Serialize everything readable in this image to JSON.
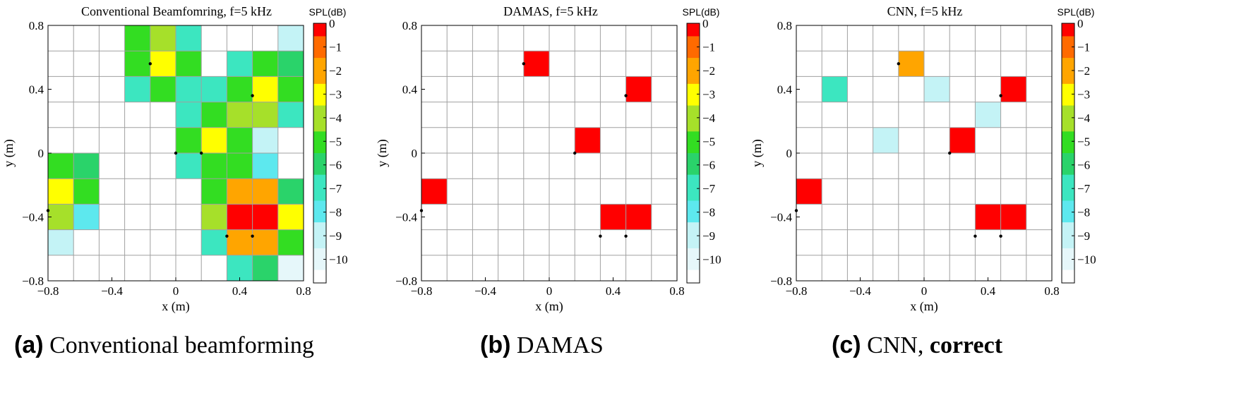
{
  "panels": [
    {
      "title": "Conventional Beamfomring, f=5 kHz",
      "colorbar_label": "SPL(dB)",
      "caption_tag": "(a)",
      "caption_text": " Conventional beamforming",
      "caption_bold": "",
      "chart_data": {
        "type": "heatmap",
        "xlabel": "x (m)",
        "ylabel": "y (m)",
        "xlim": [
          -0.8,
          0.8
        ],
        "ylim": [
          -0.8,
          0.8
        ],
        "grid": true,
        "x_ticks": [
          "−0.8",
          "−0.4",
          "0",
          "0.4",
          "0.8"
        ],
        "y_ticks": [
          "0.8",
          "0.4",
          "0",
          "−0.4",
          "−0.8"
        ],
        "cell_size_m": 0.16,
        "colorbar_ticks": [
          "0",
          "−1",
          "−2",
          "−3",
          "−4",
          "−5",
          "−6",
          "−7",
          "−8",
          "−9",
          "−10"
        ],
        "colorbar_range_db": [
          -11,
          0
        ],
        "cells": [
          {
            "col": 3,
            "row": 0,
            "db": -5.5
          },
          {
            "col": 4,
            "row": 0,
            "db": -4
          },
          {
            "col": 5,
            "row": 0,
            "db": -7
          },
          {
            "col": 9,
            "row": 0,
            "db": -9.5
          },
          {
            "col": 3,
            "row": 1,
            "db": -5
          },
          {
            "col": 4,
            "row": 1,
            "db": -3
          },
          {
            "col": 5,
            "row": 1,
            "db": -5
          },
          {
            "col": 7,
            "row": 1,
            "db": -7
          },
          {
            "col": 8,
            "row": 1,
            "db": -5
          },
          {
            "col": 9,
            "row": 1,
            "db": -6
          },
          {
            "col": 3,
            "row": 2,
            "db": -7
          },
          {
            "col": 4,
            "row": 2,
            "db": -5
          },
          {
            "col": 5,
            "row": 2,
            "db": -7
          },
          {
            "col": 6,
            "row": 2,
            "db": -7.5
          },
          {
            "col": 7,
            "row": 2,
            "db": -5
          },
          {
            "col": 8,
            "row": 2,
            "db": -3
          },
          {
            "col": 9,
            "row": 2,
            "db": -5
          },
          {
            "col": 5,
            "row": 3,
            "db": -7
          },
          {
            "col": 6,
            "row": 3,
            "db": -5
          },
          {
            "col": 7,
            "row": 3,
            "db": -4
          },
          {
            "col": 8,
            "row": 3,
            "db": -4
          },
          {
            "col": 9,
            "row": 3,
            "db": -7.5
          },
          {
            "col": 5,
            "row": 4,
            "db": -5
          },
          {
            "col": 6,
            "row": 4,
            "db": -3
          },
          {
            "col": 7,
            "row": 4,
            "db": -5
          },
          {
            "col": 8,
            "row": 4,
            "db": -9.5
          },
          {
            "col": 0,
            "row": 5,
            "db": -5
          },
          {
            "col": 1,
            "row": 5,
            "db": -6
          },
          {
            "col": 5,
            "row": 5,
            "db": -7.5
          },
          {
            "col": 6,
            "row": 5,
            "db": -5
          },
          {
            "col": 7,
            "row": 5,
            "db": -5
          },
          {
            "col": 8,
            "row": 5,
            "db": -8
          },
          {
            "col": 0,
            "row": 6,
            "db": -3
          },
          {
            "col": 1,
            "row": 6,
            "db": -5
          },
          {
            "col": 6,
            "row": 6,
            "db": -5
          },
          {
            "col": 7,
            "row": 6,
            "db": -2
          },
          {
            "col": 8,
            "row": 6,
            "db": -2
          },
          {
            "col": 9,
            "row": 6,
            "db": -6
          },
          {
            "col": 0,
            "row": 7,
            "db": -4
          },
          {
            "col": 1,
            "row": 7,
            "db": -8
          },
          {
            "col": 6,
            "row": 7,
            "db": -4
          },
          {
            "col": 7,
            "row": 7,
            "db": 0
          },
          {
            "col": 8,
            "row": 7,
            "db": 0
          },
          {
            "col": 9,
            "row": 7,
            "db": -3
          },
          {
            "col": 0,
            "row": 8,
            "db": -9.5
          },
          {
            "col": 6,
            "row": 8,
            "db": -7
          },
          {
            "col": 7,
            "row": 8,
            "db": -2
          },
          {
            "col": 8,
            "row": 8,
            "db": -2
          },
          {
            "col": 9,
            "row": 8,
            "db": -5
          },
          {
            "col": 7,
            "row": 9,
            "db": -7.5
          },
          {
            "col": 8,
            "row": 9,
            "db": -6
          },
          {
            "col": 9,
            "row": 9,
            "db": -10
          }
        ],
        "source_markers": [
          [
            -0.16,
            0.56
          ],
          [
            0.48,
            0.36
          ],
          [
            0.0,
            0.0
          ],
          [
            0.16,
            0.0
          ],
          [
            -0.8,
            -0.36
          ],
          [
            0.32,
            -0.52
          ],
          [
            0.48,
            -0.52
          ]
        ]
      }
    },
    {
      "title": "DAMAS, f=5 kHz",
      "colorbar_label": "SPL(dB)",
      "caption_tag": "(b)",
      "caption_text": " DAMAS",
      "caption_bold": "",
      "chart_data": {
        "type": "heatmap",
        "xlabel": "x (m)",
        "ylabel": "y (m)",
        "xlim": [
          -0.8,
          0.8
        ],
        "ylim": [
          -0.8,
          0.8
        ],
        "grid": true,
        "x_ticks": [
          "−0.8",
          "−0.4",
          "0",
          "0.4",
          "0.8"
        ],
        "y_ticks": [
          "0.8",
          "0.4",
          "0",
          "−0.4",
          "−0.8"
        ],
        "cell_size_m": 0.16,
        "colorbar_ticks": [
          "0",
          "−1",
          "−2",
          "−3",
          "−4",
          "−5",
          "−6",
          "−7",
          "−8",
          "−9",
          "−10"
        ],
        "colorbar_range_db": [
          -11,
          0
        ],
        "cells": [
          {
            "col": 4,
            "row": 1,
            "db": 0
          },
          {
            "col": 8,
            "row": 2,
            "db": 0
          },
          {
            "col": 6,
            "row": 4,
            "db": 0
          },
          {
            "col": 0,
            "row": 6,
            "db": 0
          },
          {
            "col": 7,
            "row": 7,
            "db": 0
          },
          {
            "col": 8,
            "row": 7,
            "db": 0
          }
        ],
        "source_markers": [
          [
            -0.16,
            0.56
          ],
          [
            0.48,
            0.36
          ],
          [
            0.16,
            0.0
          ],
          [
            -0.8,
            -0.36
          ],
          [
            0.32,
            -0.52
          ],
          [
            0.48,
            -0.52
          ]
        ]
      }
    },
    {
      "title": "CNN, f=5 kHz",
      "colorbar_label": "SPL(dB)",
      "caption_tag": "(c)",
      "caption_text": " CNN, ",
      "caption_bold": "correct",
      "chart_data": {
        "type": "heatmap",
        "xlabel": "x (m)",
        "ylabel": "y (m)",
        "xlim": [
          -0.8,
          0.8
        ],
        "ylim": [
          -0.8,
          0.8
        ],
        "grid": true,
        "x_ticks": [
          "−0.8",
          "−0.4",
          "0",
          "0.4",
          "0.8"
        ],
        "y_ticks": [
          "0.8",
          "0.4",
          "0",
          "−0.4",
          "−0.8"
        ],
        "cell_size_m": 0.16,
        "colorbar_ticks": [
          "0",
          "−1",
          "−2",
          "−3",
          "−4",
          "−5",
          "−6",
          "−7",
          "−8",
          "−9",
          "−10"
        ],
        "colorbar_range_db": [
          -11,
          0
        ],
        "cells": [
          {
            "col": 4,
            "row": 1,
            "db": -2
          },
          {
            "col": 1,
            "row": 2,
            "db": -7
          },
          {
            "col": 5,
            "row": 2,
            "db": -9.5
          },
          {
            "col": 8,
            "row": 2,
            "db": 0
          },
          {
            "col": 7,
            "row": 3,
            "db": -9.5
          },
          {
            "col": 3,
            "row": 4,
            "db": -9.5
          },
          {
            "col": 6,
            "row": 4,
            "db": 0
          },
          {
            "col": 0,
            "row": 6,
            "db": 0
          },
          {
            "col": 7,
            "row": 7,
            "db": 0
          },
          {
            "col": 8,
            "row": 7,
            "db": 0
          }
        ],
        "source_markers": [
          [
            -0.16,
            0.56
          ],
          [
            0.48,
            0.36
          ],
          [
            0.16,
            0.0
          ],
          [
            -0.8,
            -0.36
          ],
          [
            0.32,
            -0.52
          ],
          [
            0.48,
            -0.52
          ]
        ]
      }
    }
  ],
  "colormap": [
    "#ffffff",
    "#e6f7fa",
    "#c4f3f6",
    "#5de8ee",
    "#3ce6c0",
    "#2ad36a",
    "#33dd22",
    "#a6e02a",
    "#ffff00",
    "#ffa500",
    "#ff6a00",
    "#ff0000"
  ]
}
